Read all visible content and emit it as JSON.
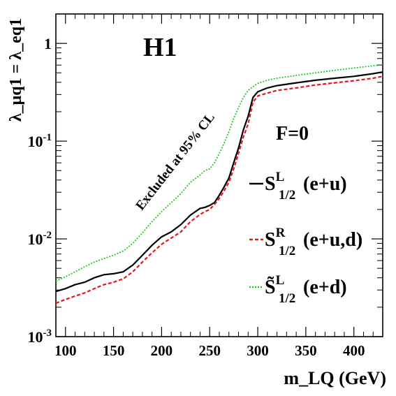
{
  "chart_data": {
    "type": "line",
    "title": "H1",
    "xlabel": "m_LQ (GeV)",
    "ylabel": "λ_μq1 = λ_eq1",
    "xlim": [
      90,
      430
    ],
    "ylim": [
      0.001,
      2.0
    ],
    "yscale": "log",
    "grid": false,
    "legend_placement": "right",
    "x_ticks": [
      100,
      150,
      200,
      250,
      300,
      350,
      400
    ],
    "x_tick_labels": [
      "100",
      "150",
      "200",
      "250",
      "300",
      "350",
      "400"
    ],
    "y_ticks": [
      0.001,
      0.01,
      0.1,
      1
    ],
    "y_tick_labels": [
      "10-3",
      "10-2",
      "10-1",
      "1"
    ],
    "legend_header": "F=0",
    "annotation": "Excluded at 95% CL",
    "series": [
      {
        "name": "S1/2 L (e+u)",
        "label_main": "S",
        "label_sup": "L",
        "label_sub": "1/2",
        "label_rest": "(e+u)",
        "color": "#000000",
        "style": "solid",
        "x": [
          90,
          100,
          110,
          120,
          130,
          140,
          150,
          160,
          170,
          180,
          190,
          200,
          210,
          220,
          230,
          240,
          245,
          250,
          255,
          260,
          265,
          270,
          275,
          280,
          285,
          290,
          295,
          300,
          310,
          320,
          340,
          360,
          380,
          400,
          420,
          430
        ],
        "y": [
          0.0029,
          0.0031,
          0.0034,
          0.0036,
          0.004,
          0.0043,
          0.0044,
          0.0046,
          0.0054,
          0.0068,
          0.0086,
          0.0105,
          0.0118,
          0.014,
          0.0175,
          0.0205,
          0.021,
          0.022,
          0.0235,
          0.028,
          0.034,
          0.042,
          0.06,
          0.085,
          0.13,
          0.18,
          0.28,
          0.32,
          0.35,
          0.37,
          0.395,
          0.42,
          0.44,
          0.46,
          0.49,
          0.51
        ]
      },
      {
        "name": "S1/2 R (e+u,d)",
        "label_main": "S",
        "label_sup": "R",
        "label_sub": "1/2",
        "label_rest": "(e+u,d)",
        "color": "#e8141b",
        "style": "dashed",
        "x": [
          90,
          100,
          110,
          120,
          130,
          140,
          150,
          160,
          170,
          180,
          190,
          200,
          210,
          220,
          230,
          240,
          245,
          250,
          255,
          260,
          265,
          270,
          275,
          280,
          285,
          290,
          295,
          300,
          310,
          320,
          340,
          360,
          380,
          400,
          420,
          430
        ],
        "y": [
          0.0022,
          0.0024,
          0.0026,
          0.0028,
          0.0031,
          0.0034,
          0.0036,
          0.0039,
          0.0046,
          0.0058,
          0.0072,
          0.0088,
          0.0102,
          0.0118,
          0.015,
          0.0178,
          0.019,
          0.02,
          0.0225,
          0.026,
          0.031,
          0.038,
          0.052,
          0.075,
          0.11,
          0.15,
          0.25,
          0.29,
          0.31,
          0.33,
          0.35,
          0.375,
          0.395,
          0.415,
          0.44,
          0.46
        ]
      },
      {
        "name": "S~1/2 L (e+d)",
        "label_main": "S̃",
        "label_sup": "L",
        "label_sub": "1/2",
        "label_rest": "(e+d)",
        "color": "#22c922",
        "style": "dotted",
        "x": [
          90,
          100,
          110,
          120,
          130,
          140,
          150,
          160,
          170,
          180,
          190,
          200,
          210,
          220,
          230,
          240,
          245,
          250,
          255,
          260,
          265,
          270,
          275,
          280,
          285,
          290,
          295,
          300,
          310,
          320,
          340,
          360,
          380,
          400,
          420,
          430
        ],
        "y": [
          0.0037,
          0.0041,
          0.0046,
          0.0052,
          0.0058,
          0.0063,
          0.0068,
          0.0075,
          0.009,
          0.0115,
          0.015,
          0.019,
          0.0235,
          0.029,
          0.038,
          0.045,
          0.05,
          0.052,
          0.06,
          0.075,
          0.095,
          0.125,
          0.17,
          0.22,
          0.28,
          0.33,
          0.36,
          0.39,
          0.42,
          0.44,
          0.47,
          0.5,
          0.53,
          0.56,
          0.59,
          0.61
        ]
      }
    ]
  }
}
